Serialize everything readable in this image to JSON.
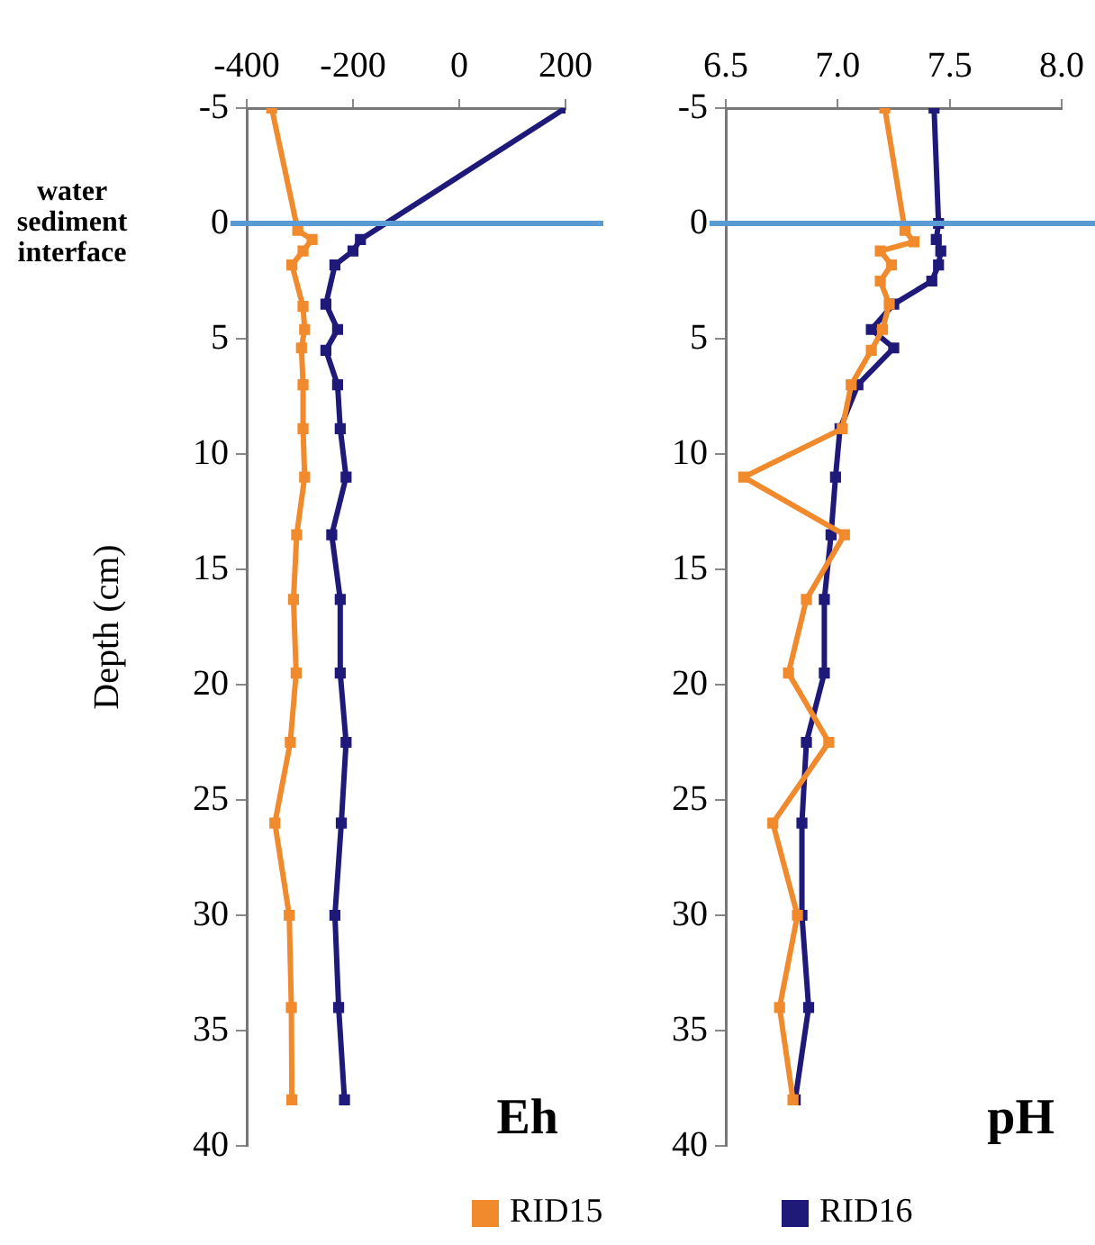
{
  "chart_data": [
    {
      "type": "line",
      "title": "Eh",
      "ylabel": "Depth (cm)",
      "xlim": [
        -400,
        200
      ],
      "xticks": [
        -400,
        -200,
        0,
        200
      ],
      "ylim": [
        40,
        -5
      ],
      "yticks": [
        -5,
        0,
        5,
        10,
        15,
        20,
        25,
        30,
        35,
        40
      ],
      "grid": false,
      "legend": "bottom",
      "marker": "square",
      "annotations": [
        "water sediment interface"
      ],
      "ref_lines": [
        {
          "axis": "y",
          "value": 0,
          "color": "#5b9bd5"
        }
      ],
      "series": [
        {
          "name": "RID15",
          "color": "#f08a2c",
          "x": [
            -353,
            -304,
            -277,
            -294,
            -315,
            -294,
            -291,
            -297,
            -294,
            -294,
            -291,
            -306,
            -312,
            -307,
            -318,
            -347,
            -320,
            -316,
            -315
          ],
          "values": [
            -5,
            0.3,
            0.7,
            1.2,
            1.8,
            3.6,
            4.6,
            5.4,
            7,
            8.9,
            11,
            13.5,
            16.3,
            19.5,
            22.5,
            26,
            30,
            34,
            38
          ]
        },
        {
          "name": "RID16",
          "color": "#1f1a7a",
          "x": [
            200,
            -186,
            -200,
            -234,
            -251,
            -229,
            -251,
            -229,
            -224,
            -213,
            -240,
            -224,
            -224,
            -213,
            -222,
            -234,
            -227,
            -216
          ],
          "values": [
            -5,
            0.7,
            1.2,
            1.8,
            3.5,
            4.6,
            5.5,
            7,
            8.9,
            11,
            13.5,
            16.3,
            19.5,
            22.5,
            26,
            30,
            34,
            38
          ]
        }
      ]
    },
    {
      "type": "line",
      "title": "pH",
      "xlim": [
        6.5,
        8.0
      ],
      "xticks": [
        {
          "value": 6.5,
          "label": "6.5"
        },
        {
          "value": 7,
          "label": "7.0"
        },
        {
          "value": 7.5,
          "label": "7.5"
        },
        {
          "value": 8,
          "label": "8.0"
        }
      ],
      "ylim": [
        40,
        -5
      ],
      "yticks": [
        -5,
        0,
        5,
        10,
        15,
        20,
        25,
        30,
        35,
        40
      ],
      "grid": false,
      "marker": "square",
      "ref_lines": [
        {
          "axis": "y",
          "value": 0,
          "color": "#5b9bd5"
        }
      ],
      "series": [
        {
          "color": "#f08a2c",
          "x": [
            7.21,
            7.3,
            7.34,
            7.19,
            7.24,
            7.19,
            7.23,
            7.2,
            7.15,
            7.06,
            7.02,
            6.58,
            7.03,
            6.86,
            6.78,
            6.96,
            6.71,
            6.82,
            6.74,
            6.8
          ],
          "values": [
            -5,
            0.3,
            0.8,
            1.2,
            1.8,
            2.5,
            3.5,
            4.6,
            5.5,
            7,
            8.9,
            11,
            13.5,
            16.3,
            19.5,
            22.5,
            26,
            30,
            34,
            38
          ]
        },
        {
          "color": "#1f1a7a",
          "x": [
            7.43,
            7.45,
            7.44,
            7.46,
            7.45,
            7.42,
            7.25,
            7.15,
            7.25,
            7.09,
            7.01,
            6.99,
            6.97,
            6.94,
            6.94,
            6.86,
            6.84,
            6.84,
            6.87,
            6.81
          ],
          "values": [
            -5,
            0,
            0.7,
            1.2,
            1.8,
            2.5,
            3.5,
            4.6,
            5.4,
            7,
            8.9,
            11,
            13.5,
            16.3,
            19.5,
            22.5,
            26,
            30,
            34,
            38
          ]
        }
      ]
    }
  ]
}
